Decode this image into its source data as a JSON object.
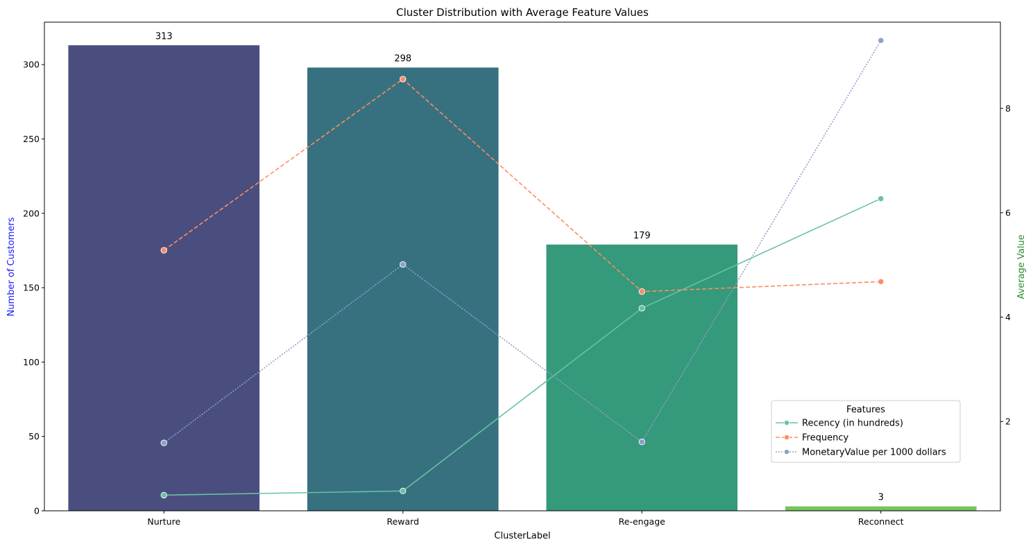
{
  "chart_data": {
    "type": "bar",
    "title": "Cluster Distribution with Average Feature Values",
    "xlabel": "ClusterLabel",
    "ylabel": "Number of Customers",
    "ylabel_color": "#1a1aff",
    "y2label": "Average Value",
    "y2label_color": "#2e8b2e",
    "categories": [
      "Nurture",
      "Reward",
      "Re-engage",
      "Reconnect"
    ],
    "values": [
      313,
      298,
      179,
      3
    ],
    "data_labels": [
      "313",
      "298",
      "179",
      "3"
    ],
    "bar_colors": [
      "#4a4e7e",
      "#37717f",
      "#35997b",
      "#75c45e"
    ],
    "ylim": [
      0,
      328.5
    ],
    "yticks": [
      0,
      50,
      100,
      150,
      200,
      250,
      300
    ],
    "y2lim": [
      0.29,
      9.65
    ],
    "y2ticks": [
      2,
      4,
      6,
      8
    ],
    "grid": false,
    "legend_title": "Features",
    "legend_position": "lower-right",
    "series": [
      {
        "name": "Recency (in hundreds)",
        "color": "#66c2a5",
        "dash": "solid",
        "values": [
          0.59,
          0.67,
          4.17,
          6.27
        ]
      },
      {
        "name": "Frequency",
        "color": "#fc8d62",
        "dash": "dashed",
        "values": [
          5.28,
          8.56,
          4.49,
          4.68
        ]
      },
      {
        "name": "MonetaryValue per 1000 dollars",
        "color": "#8da0cb",
        "dash": "dotted",
        "values": [
          1.59,
          5.01,
          1.61,
          9.3
        ]
      }
    ]
  }
}
